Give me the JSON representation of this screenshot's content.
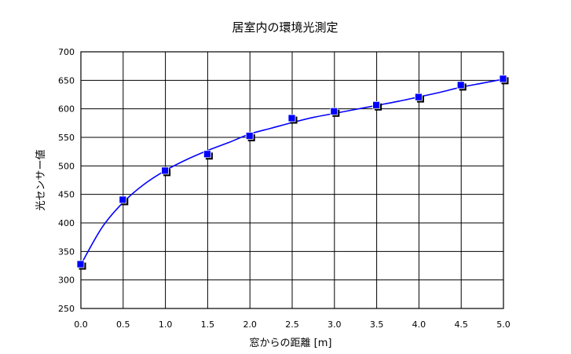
{
  "chart_data": {
    "type": "scatter",
    "title": "居室内の環境光測定",
    "xlabel": "窓からの距離 [m]",
    "ylabel": "光センサー値",
    "xlim": [
      0.0,
      5.0
    ],
    "ylim": [
      250,
      700
    ],
    "x_ticks": [
      "0.0",
      "0.5",
      "1.0",
      "1.5",
      "2.0",
      "2.5",
      "3.0",
      "3.5",
      "4.0",
      "4.5",
      "5.0"
    ],
    "y_ticks": [
      "250",
      "300",
      "350",
      "400",
      "450",
      "500",
      "550",
      "600",
      "650",
      "700"
    ],
    "grid": true,
    "legend": "none",
    "marker_color": "#0000ff",
    "line_color": "#0000ff",
    "series": [
      {
        "x": [
          0.0,
          0.5,
          1.0,
          1.5,
          2.0,
          2.5,
          3.0,
          3.5,
          4.0,
          4.5,
          5.0
        ],
        "y": [
          327,
          440,
          491,
          520,
          552,
          583,
          595,
          606,
          620,
          641,
          652
        ]
      }
    ],
    "trendline": {
      "x": [
        0.0,
        0.25,
        0.5,
        0.75,
        1.0,
        1.25,
        1.5,
        1.75,
        2.0,
        2.25,
        2.5,
        2.75,
        3.0,
        3.25,
        3.5,
        3.75,
        4.0,
        4.25,
        4.5,
        4.75,
        5.0
      ],
      "y": [
        327,
        392,
        436,
        468,
        492,
        511,
        527,
        541,
        556,
        566,
        576,
        585,
        592,
        599,
        606,
        613,
        621,
        629,
        638,
        645,
        652
      ]
    }
  }
}
